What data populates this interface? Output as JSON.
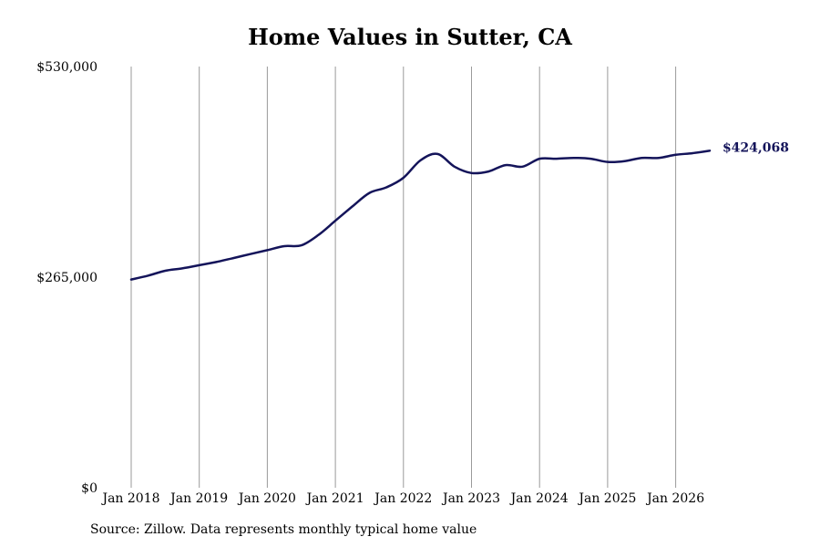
{
  "chart_data": {
    "type": "line",
    "title": "Home Values in Sutter, CA",
    "source": "Source: Zillow. Data represents monthly typical home value",
    "xlabel": "",
    "ylabel": "",
    "ylim": [
      0,
      530000
    ],
    "y_ticks": [
      0,
      265000,
      530000
    ],
    "y_tick_labels": [
      "$0",
      "$265,000",
      "$530,000"
    ],
    "x_ticks": [
      "2018-01",
      "2019-01",
      "2020-01",
      "2021-01",
      "2022-01",
      "2023-01",
      "2024-01",
      "2025-01",
      "2026-01"
    ],
    "x_tick_labels": [
      "Jan 2018",
      "Jan 2019",
      "Jan 2020",
      "Jan 2021",
      "Jan 2022",
      "Jan 2023",
      "Jan 2024",
      "Jan 2025",
      "Jan 2026"
    ],
    "grid": "vertical",
    "line_color": "#14145a",
    "end_label": "$424,068",
    "series": [
      {
        "x": [
          "2018-01",
          "2018-04",
          "2018-07",
          "2018-10",
          "2019-01",
          "2019-04",
          "2019-07",
          "2019-10",
          "2020-01",
          "2020-04",
          "2020-07",
          "2020-10",
          "2021-01",
          "2021-04",
          "2021-07",
          "2021-10",
          "2022-01",
          "2022-04",
          "2022-07",
          "2022-10",
          "2023-01",
          "2023-04",
          "2023-07",
          "2023-10",
          "2024-01",
          "2024-04",
          "2024-07",
          "2024-10",
          "2025-01",
          "2025-04",
          "2025-07",
          "2025-10",
          "2026-01",
          "2026-04",
          "2026-07"
        ],
        "values": [
          262000,
          267000,
          273000,
          276000,
          280000,
          284000,
          289000,
          294000,
          299000,
          304000,
          305000,
          318000,
          336000,
          354000,
          371000,
          378000,
          390000,
          412000,
          420000,
          404000,
          396000,
          398000,
          406000,
          404000,
          414000,
          414000,
          415000,
          414000,
          410000,
          411000,
          415000,
          415000,
          419000,
          421000,
          424068
        ]
      }
    ]
  }
}
